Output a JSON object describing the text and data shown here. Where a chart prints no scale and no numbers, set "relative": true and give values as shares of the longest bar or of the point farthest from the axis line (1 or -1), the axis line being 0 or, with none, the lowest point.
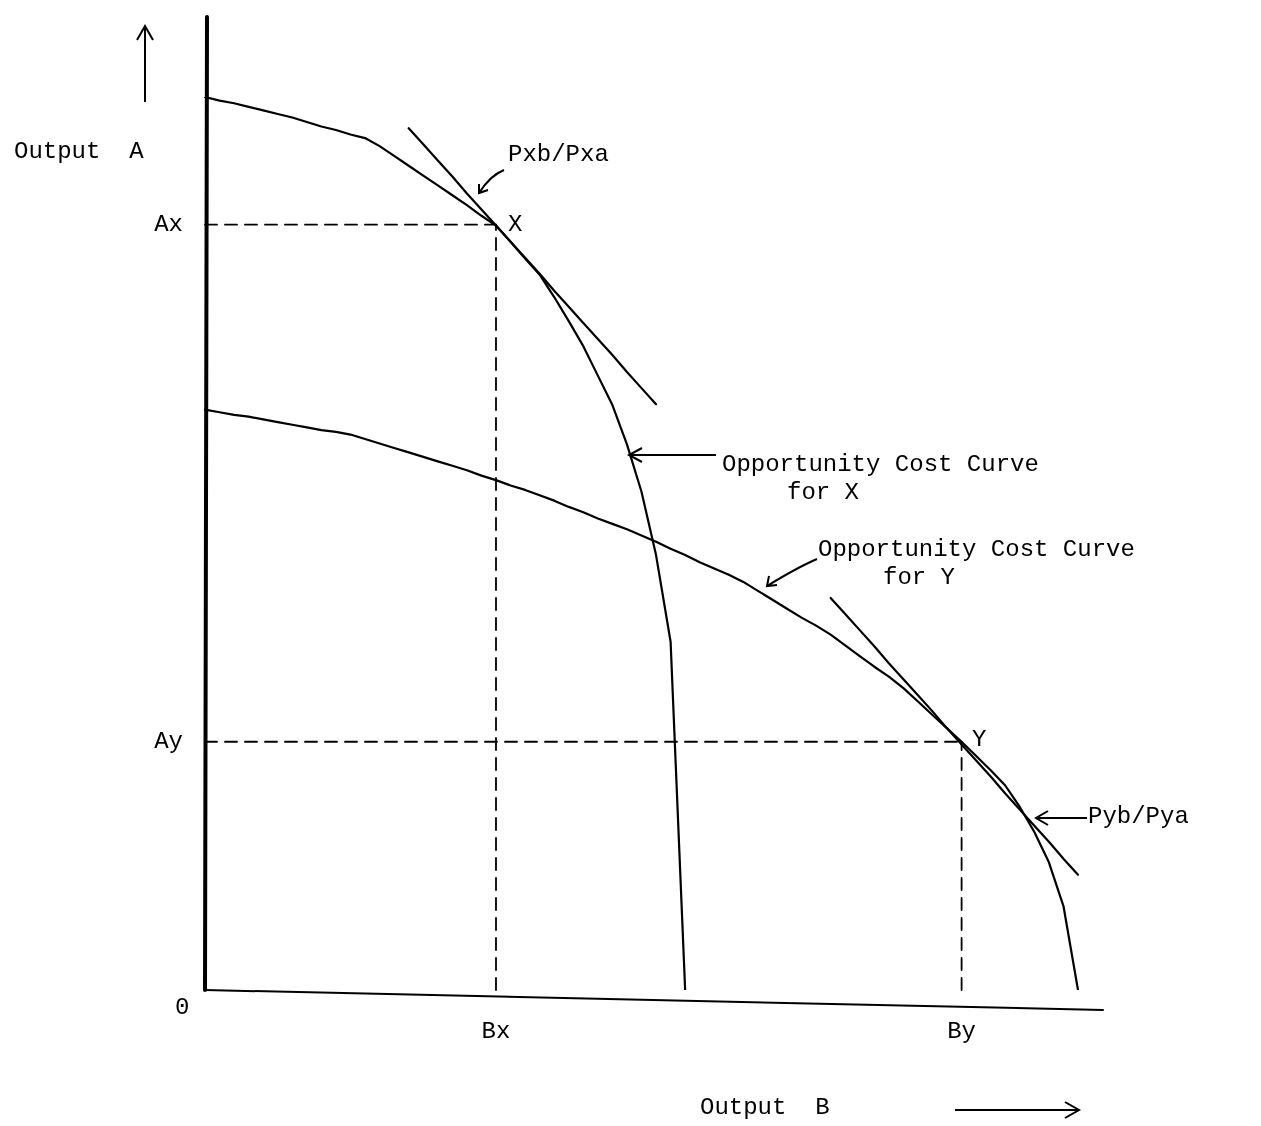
{
  "chart_data": {
    "type": "line",
    "relative": true,
    "xlabel": "Output  B",
    "ylabel": "Output  A",
    "marker": "none",
    "line_style": "solid",
    "categories": [
      null,
      null,
      null,
      null,
      null,
      null,
      null,
      null,
      null,
      null,
      null,
      null,
      null,
      null,
      null,
      null,
      null,
      null,
      null,
      null,
      "Bx",
      null,
      null,
      null,
      null,
      null,
      null,
      null,
      null,
      null,
      null,
      null,
      null,
      null,
      null,
      null,
      null,
      null,
      null,
      null,
      null,
      null,
      null,
      null,
      null,
      null,
      null,
      null,
      null,
      null,
      null,
      null,
      "By",
      null,
      null,
      null,
      null,
      null,
      null,
      null,
      null
    ],
    "series": [
      {
        "color": "#000000",
        "values": [
          1,
          0.996,
          0.993,
          0.989,
          0.985,
          0.981,
          0.977,
          0.972,
          0.967,
          0.963,
          0.958,
          0.954,
          0.945,
          0.934,
          0.923,
          0.912,
          0.901,
          0.89,
          0.879,
          0.867,
          0.856,
          0.838,
          0.819,
          0.801,
          0.776,
          0.749,
          0.721,
          0.688,
          0.655,
          0.611,
          0.558,
          0.487,
          0.39,
          0,
          null,
          null,
          null,
          null,
          null,
          null,
          null,
          null,
          null,
          null,
          null,
          null,
          null,
          null,
          null,
          null,
          null,
          null,
          null,
          null,
          null,
          null,
          null,
          null,
          null,
          null,
          null
        ]
      },
      {
        "color": "#000000",
        "values": [
          0.65,
          0.647,
          0.644,
          0.642,
          0.639,
          0.636,
          0.633,
          0.63,
          0.627,
          0.625,
          0.622,
          0.617,
          0.612,
          0.607,
          0.602,
          0.597,
          0.592,
          0.587,
          0.582,
          0.576,
          0.571,
          0.565,
          0.56,
          0.554,
          0.548,
          0.541,
          0.535,
          0.528,
          0.522,
          0.516,
          0.509,
          0.502,
          0.494,
          0.487,
          0.479,
          0.472,
          0.465,
          0.457,
          0.447,
          0.437,
          0.427,
          0.417,
          0.408,
          0.398,
          0.386,
          0.374,
          0.362,
          0.351,
          0.338,
          0.323,
          0.308,
          0.293,
          0.278,
          0.262,
          0.246,
          0.229,
          0.205,
          0.177,
          0.143,
          0.094,
          0
        ]
      },
      {
        "color": "#000000",
        "values": [
          null,
          null,
          null,
          null,
          null,
          null,
          null,
          null,
          null,
          null,
          null,
          null,
          null,
          null,
          0.965,
          0.947,
          0.929,
          0.911,
          0.892,
          0.874,
          0.856,
          0.838,
          0.82,
          0.802,
          0.783,
          0.765,
          0.747,
          0.729,
          0.711,
          0.692,
          0.674,
          0.656,
          null,
          null,
          null,
          null,
          null,
          null,
          null,
          null,
          null,
          null,
          null,
          null,
          null,
          null,
          null,
          null,
          null,
          null,
          null,
          null,
          null,
          null,
          null,
          null,
          null,
          null,
          null,
          null,
          null
        ]
      },
      {
        "color": "#000000",
        "values": [
          null,
          null,
          null,
          null,
          null,
          null,
          null,
          null,
          null,
          null,
          null,
          null,
          null,
          null,
          null,
          null,
          null,
          null,
          null,
          null,
          null,
          null,
          null,
          null,
          null,
          null,
          null,
          null,
          null,
          null,
          null,
          null,
          null,
          null,
          null,
          null,
          null,
          null,
          null,
          null,
          null,
          null,
          null,
          0.439,
          0.421,
          0.403,
          0.385,
          0.366,
          0.348,
          0.33,
          0.312,
          0.293,
          0.275,
          0.257,
          0.239,
          0.22,
          0.202,
          0.184,
          0.166,
          0.147,
          0.129
        ]
      }
    ],
    "ref_lines": [
      {
        "axis": "y",
        "value": 0.857,
        "label": "Ax",
        "line_style": "dashed",
        "color": "#000000"
      },
      {
        "axis": "y",
        "value": 0.278,
        "label": "Ay",
        "line_style": "dashed",
        "color": "#000000"
      },
      {
        "axis": "x",
        "value": "Bx",
        "line_style": "dashed",
        "color": "#000000"
      },
      {
        "axis": "x",
        "value": "By",
        "line_style": "dashed",
        "color": "#000000"
      }
    ],
    "annotations": [
      "0",
      "X",
      "Y",
      "Pxb/Pxa",
      "Pyb/Pya",
      "Opportunity Cost Curve\nfor X",
      "Opportunity Cost Curve\nfor Y"
    ]
  }
}
